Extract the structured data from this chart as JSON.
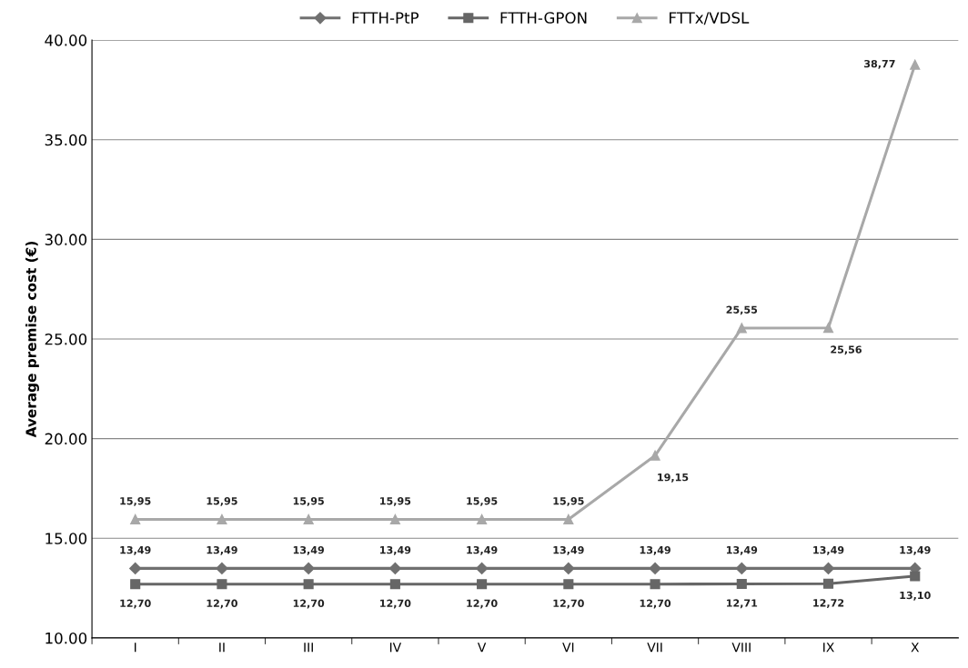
{
  "chart_data": {
    "type": "line",
    "ylabel": "Average premise cost (€)",
    "categories": [
      "I",
      "II",
      "III",
      "IV",
      "V",
      "VI",
      "VII",
      "VIII",
      "IX",
      "X"
    ],
    "series": [
      {
        "name": "FTTH-PtP",
        "color": "#707070",
        "marker": "diamond",
        "values": [
          13.49,
          13.49,
          13.49,
          13.49,
          13.49,
          13.49,
          13.49,
          13.49,
          13.49,
          13.49
        ],
        "value_labels": [
          "13,49",
          "13,49",
          "13,49",
          "13,49",
          "13,49",
          "13,49",
          "13,49",
          "13,49",
          "13,49",
          "13,49"
        ]
      },
      {
        "name": "FTTH-GPON",
        "color": "#666666",
        "marker": "square",
        "values": [
          12.7,
          12.7,
          12.7,
          12.7,
          12.7,
          12.7,
          12.7,
          12.71,
          12.72,
          13.1
        ],
        "value_labels": [
          "12,70",
          "12,70",
          "12,70",
          "12,70",
          "12,70",
          "12,70",
          "12,70",
          "12,71",
          "12,72",
          "13,10"
        ]
      },
      {
        "name": "FTTx/VDSL",
        "color": "#a8a8a8",
        "marker": "triangle",
        "values": [
          15.95,
          15.95,
          15.95,
          15.95,
          15.95,
          15.95,
          19.15,
          25.55,
          25.56,
          38.77
        ],
        "value_labels": [
          "15,95",
          "15,95",
          "15,95",
          "15,95",
          "15,95",
          "15,95",
          "19,15",
          "25,55",
          "25,56",
          "38,77"
        ]
      }
    ],
    "ylim": [
      10,
      40
    ],
    "yticks": [
      {
        "value": 10,
        "label": "10.00"
      },
      {
        "value": 15,
        "label": "15.00"
      },
      {
        "value": 20,
        "label": "20.00"
      },
      {
        "value": 25,
        "label": "25.00"
      },
      {
        "value": 30,
        "label": "30.00"
      },
      {
        "value": 35,
        "label": "35.00"
      },
      {
        "value": 40,
        "label": "40.00"
      }
    ],
    "grid": "y",
    "legend": "top",
    "line_style": "solid"
  }
}
